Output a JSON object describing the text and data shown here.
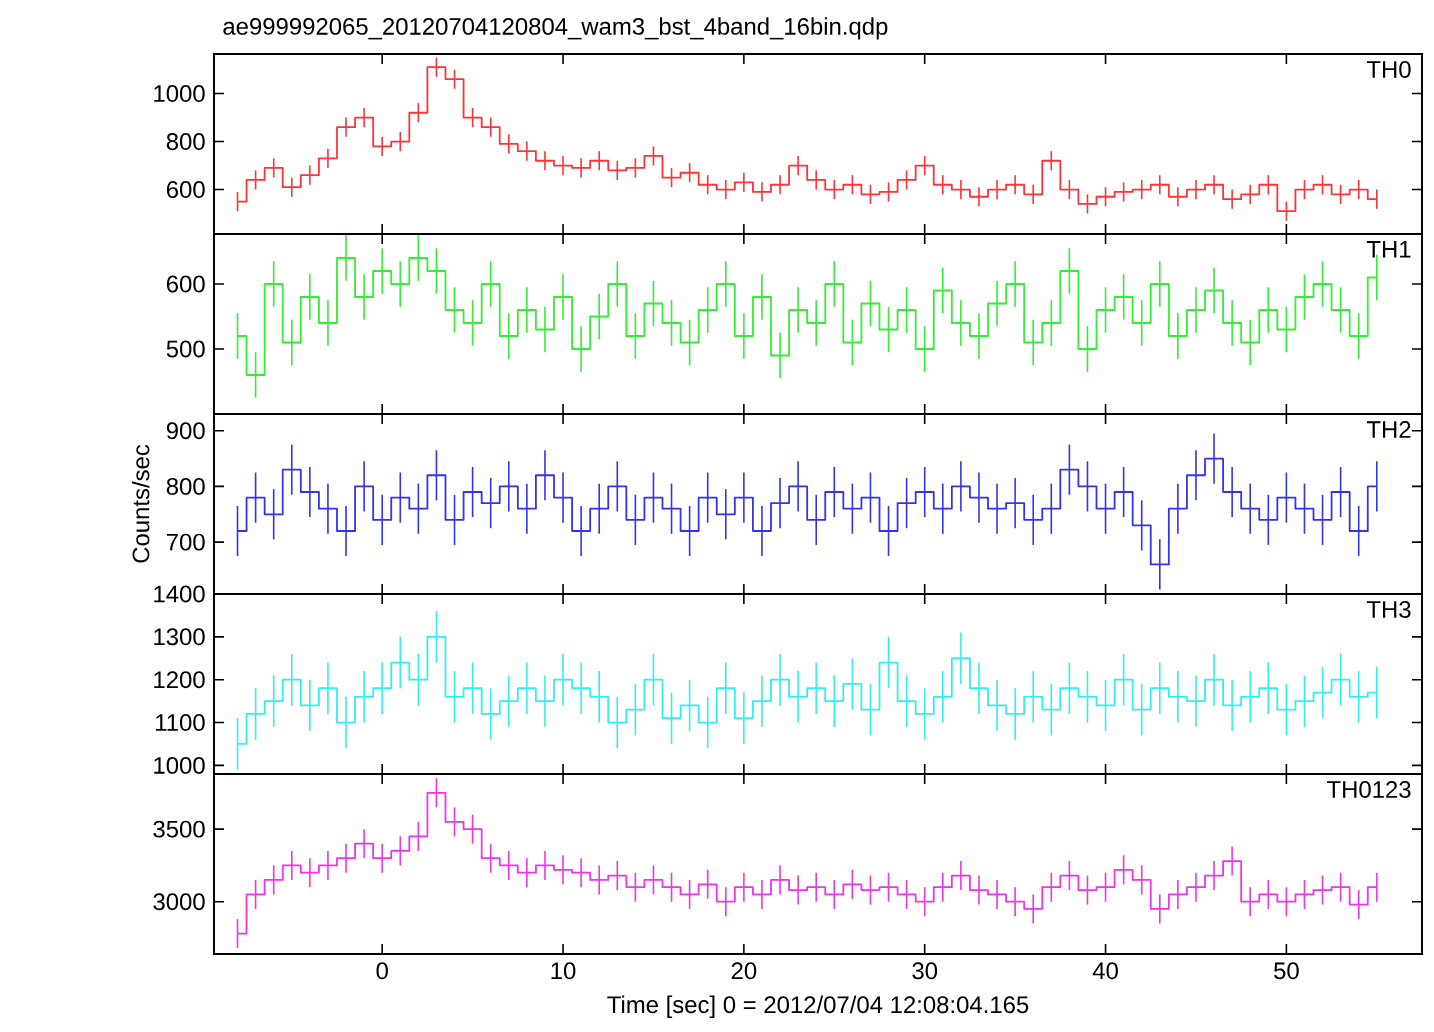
{
  "chart_data": [
    {
      "type": "step",
      "title": "ae999992065_20120704120804_wam3_bst_4band_16bin.qdp",
      "tick_labels": "y",
      "xlim": [
        -9.3,
        57.5
      ],
      "xticks": [
        0,
        10,
        20,
        30,
        40,
        50
      ],
      "ylim": [
        415,
        1165
      ],
      "yticks": [
        600,
        800,
        1000
      ],
      "x": [
        -8,
        -7,
        -6,
        -5,
        -4,
        -3,
        -2,
        -1,
        0,
        1,
        2,
        3,
        4,
        5,
        6,
        7,
        8,
        9,
        10,
        11,
        12,
        13,
        14,
        15,
        16,
        17,
        18,
        19,
        20,
        21,
        22,
        23,
        24,
        25,
        26,
        27,
        28,
        29,
        30,
        31,
        32,
        33,
        34,
        35,
        36,
        37,
        38,
        39,
        40,
        41,
        42,
        43,
        44,
        45,
        46,
        47,
        48,
        49,
        50,
        51,
        52,
        53,
        54,
        55
      ],
      "series": [
        {
          "name": "TH0",
          "color": "#ff3333",
          "values": [
            550,
            640,
            690,
            610,
            660,
            730,
            860,
            900,
            780,
            800,
            920,
            1110,
            1060,
            900,
            860,
            790,
            760,
            720,
            700,
            690,
            720,
            680,
            690,
            740,
            650,
            670,
            620,
            600,
            630,
            590,
            620,
            700,
            640,
            600,
            620,
            580,
            590,
            640,
            700,
            620,
            600,
            570,
            600,
            620,
            580,
            720,
            600,
            540,
            570,
            590,
            600,
            620,
            570,
            600,
            620,
            560,
            580,
            620,
            510,
            600,
            620,
            580,
            600,
            560
          ],
          "errors": [
            40,
            40,
            40,
            40,
            40,
            40,
            40,
            40,
            40,
            40,
            40,
            40,
            40,
            40,
            40,
            40,
            40,
            40,
            40,
            40,
            40,
            40,
            40,
            40,
            40,
            40,
            40,
            40,
            40,
            40,
            40,
            40,
            40,
            40,
            40,
            40,
            40,
            40,
            40,
            40,
            40,
            40,
            40,
            40,
            40,
            40,
            40,
            40,
            40,
            40,
            40,
            40,
            40,
            40,
            40,
            40,
            40,
            40,
            40,
            40,
            40,
            40,
            40,
            40
          ]
        }
      ]
    },
    {
      "type": "step",
      "tick_labels": "y",
      "xlim": [
        -9.3,
        57.5
      ],
      "xticks": [
        0,
        10,
        20,
        30,
        40,
        50
      ],
      "ylim": [
        400,
        677
      ],
      "yticks": [
        500,
        600
      ],
      "x": [
        -8,
        -7,
        -6,
        -5,
        -4,
        -3,
        -2,
        -1,
        0,
        1,
        2,
        3,
        4,
        5,
        6,
        7,
        8,
        9,
        10,
        11,
        12,
        13,
        14,
        15,
        16,
        17,
        18,
        19,
        20,
        21,
        22,
        23,
        24,
        25,
        26,
        27,
        28,
        29,
        30,
        31,
        32,
        33,
        34,
        35,
        36,
        37,
        38,
        39,
        40,
        41,
        42,
        43,
        44,
        45,
        46,
        47,
        48,
        49,
        50,
        51,
        52,
        53,
        54,
        55
      ],
      "series": [
        {
          "name": "TH1",
          "color": "#33ee33",
          "values": [
            520,
            460,
            600,
            510,
            580,
            540,
            640,
            580,
            620,
            600,
            640,
            620,
            560,
            540,
            600,
            520,
            560,
            530,
            580,
            500,
            550,
            600,
            520,
            570,
            540,
            510,
            560,
            600,
            520,
            580,
            490,
            560,
            540,
            600,
            510,
            570,
            530,
            560,
            500,
            590,
            540,
            520,
            570,
            600,
            510,
            540,
            620,
            500,
            560,
            580,
            540,
            600,
            520,
            560,
            590,
            540,
            510,
            560,
            530,
            580,
            600,
            560,
            520,
            610
          ],
          "errors": [
            35,
            35,
            35,
            35,
            35,
            35,
            35,
            35,
            35,
            35,
            35,
            35,
            35,
            35,
            35,
            35,
            35,
            35,
            35,
            35,
            35,
            35,
            35,
            35,
            35,
            35,
            35,
            35,
            35,
            35,
            35,
            35,
            35,
            35,
            35,
            35,
            35,
            35,
            35,
            35,
            35,
            35,
            35,
            35,
            35,
            35,
            35,
            35,
            35,
            35,
            35,
            35,
            35,
            35,
            35,
            35,
            35,
            35,
            35,
            35,
            35,
            35,
            35,
            35
          ]
        }
      ]
    },
    {
      "type": "step",
      "tick_labels": "y",
      "ylabel": "Counts/sec",
      "xlim": [
        -9.3,
        57.5
      ],
      "xticks": [
        0,
        10,
        20,
        30,
        40,
        50
      ],
      "ylim": [
        607,
        930
      ],
      "yticks": [
        700,
        800,
        900
      ],
      "x": [
        -8,
        -7,
        -6,
        -5,
        -4,
        -3,
        -2,
        -1,
        0,
        1,
        2,
        3,
        4,
        5,
        6,
        7,
        8,
        9,
        10,
        11,
        12,
        13,
        14,
        15,
        16,
        17,
        18,
        19,
        20,
        21,
        22,
        23,
        24,
        25,
        26,
        27,
        28,
        29,
        30,
        31,
        32,
        33,
        34,
        35,
        36,
        37,
        38,
        39,
        40,
        41,
        42,
        43,
        44,
        45,
        46,
        47,
        48,
        49,
        50,
        51,
        52,
        53,
        54,
        55
      ],
      "series": [
        {
          "name": "TH2",
          "color": "#3333ee",
          "values": [
            720,
            780,
            750,
            830,
            790,
            760,
            720,
            800,
            740,
            780,
            760,
            820,
            740,
            790,
            770,
            800,
            760,
            820,
            780,
            720,
            760,
            800,
            740,
            780,
            760,
            720,
            780,
            750,
            780,
            720,
            770,
            800,
            740,
            790,
            760,
            780,
            720,
            770,
            790,
            760,
            800,
            780,
            760,
            770,
            740,
            760,
            830,
            800,
            760,
            790,
            730,
            660,
            760,
            820,
            850,
            790,
            760,
            740,
            780,
            760,
            740,
            790,
            720,
            800
          ],
          "errors": [
            45,
            45,
            45,
            45,
            45,
            45,
            45,
            45,
            45,
            45,
            45,
            45,
            45,
            45,
            45,
            45,
            45,
            45,
            45,
            45,
            45,
            45,
            45,
            45,
            45,
            45,
            45,
            45,
            45,
            45,
            45,
            45,
            45,
            45,
            45,
            45,
            45,
            45,
            45,
            45,
            45,
            45,
            45,
            45,
            45,
            45,
            45,
            45,
            45,
            45,
            45,
            45,
            45,
            45,
            45,
            45,
            45,
            45,
            45,
            45,
            45,
            45,
            45,
            45
          ]
        }
      ]
    },
    {
      "type": "step",
      "tick_labels": "y",
      "xlim": [
        -9.3,
        57.5
      ],
      "xticks": [
        0,
        10,
        20,
        30,
        40,
        50
      ],
      "ylim": [
        980,
        1400
      ],
      "yticks": [
        1000,
        1100,
        1200,
        1300,
        1400
      ],
      "x": [
        -8,
        -7,
        -6,
        -5,
        -4,
        -3,
        -2,
        -1,
        0,
        1,
        2,
        3,
        4,
        5,
        6,
        7,
        8,
        9,
        10,
        11,
        12,
        13,
        14,
        15,
        16,
        17,
        18,
        19,
        20,
        21,
        22,
        23,
        24,
        25,
        26,
        27,
        28,
        29,
        30,
        31,
        32,
        33,
        34,
        35,
        36,
        37,
        38,
        39,
        40,
        41,
        42,
        43,
        44,
        45,
        46,
        47,
        48,
        49,
        50,
        51,
        52,
        53,
        54,
        55
      ],
      "series": [
        {
          "name": "TH3",
          "color": "#33eeee",
          "values": [
            1050,
            1120,
            1150,
            1200,
            1140,
            1180,
            1100,
            1160,
            1180,
            1240,
            1200,
            1300,
            1160,
            1180,
            1120,
            1150,
            1180,
            1150,
            1200,
            1180,
            1160,
            1100,
            1130,
            1200,
            1110,
            1140,
            1100,
            1180,
            1110,
            1150,
            1200,
            1160,
            1180,
            1150,
            1190,
            1130,
            1240,
            1150,
            1120,
            1160,
            1250,
            1180,
            1140,
            1120,
            1160,
            1130,
            1180,
            1160,
            1140,
            1200,
            1130,
            1180,
            1160,
            1150,
            1200,
            1140,
            1160,
            1180,
            1130,
            1150,
            1170,
            1200,
            1160,
            1170
          ],
          "errors": [
            60,
            60,
            60,
            60,
            60,
            60,
            60,
            60,
            60,
            60,
            60,
            60,
            60,
            60,
            60,
            60,
            60,
            60,
            60,
            60,
            60,
            60,
            60,
            60,
            60,
            60,
            60,
            60,
            60,
            60,
            60,
            60,
            60,
            60,
            60,
            60,
            60,
            60,
            60,
            60,
            60,
            60,
            60,
            60,
            60,
            60,
            60,
            60,
            60,
            60,
            60,
            60,
            60,
            60,
            60,
            60,
            60,
            60,
            60,
            60,
            60,
            60,
            60,
            60
          ]
        }
      ]
    },
    {
      "type": "step",
      "xlabel": "Time [sec] 0 = 2012/07/04 12:08:04.165",
      "xlim": [
        -9.3,
        57.5
      ],
      "xticks": [
        0,
        10,
        20,
        30,
        40,
        50
      ],
      "ylim": [
        2640,
        3880
      ],
      "yticks": [
        3000,
        3500
      ],
      "x": [
        -8,
        -7,
        -6,
        -5,
        -4,
        -3,
        -2,
        -1,
        0,
        1,
        2,
        3,
        4,
        5,
        6,
        7,
        8,
        9,
        10,
        11,
        12,
        13,
        14,
        15,
        16,
        17,
        18,
        19,
        20,
        21,
        22,
        23,
        24,
        25,
        26,
        27,
        28,
        29,
        30,
        31,
        32,
        33,
        34,
        35,
        36,
        37,
        38,
        39,
        40,
        41,
        42,
        43,
        44,
        45,
        46,
        47,
        48,
        49,
        50,
        51,
        52,
        53,
        54,
        55
      ],
      "series": [
        {
          "name": "TH0123",
          "color": "#ee33ee",
          "values": [
            2780,
            3050,
            3150,
            3250,
            3200,
            3250,
            3300,
            3400,
            3300,
            3350,
            3450,
            3750,
            3550,
            3500,
            3300,
            3250,
            3200,
            3250,
            3220,
            3200,
            3150,
            3180,
            3100,
            3150,
            3100,
            3050,
            3120,
            3000,
            3100,
            3050,
            3150,
            3080,
            3100,
            3050,
            3120,
            3080,
            3100,
            3050,
            3000,
            3100,
            3180,
            3080,
            3050,
            3000,
            2950,
            3100,
            3180,
            3080,
            3100,
            3220,
            3150,
            2950,
            3050,
            3100,
            3180,
            3280,
            3000,
            3050,
            3000,
            3050,
            3080,
            3100,
            2980,
            3100
          ],
          "errors": [
            100,
            100,
            100,
            100,
            100,
            100,
            100,
            100,
            100,
            100,
            100,
            100,
            100,
            100,
            100,
            100,
            100,
            100,
            100,
            100,
            100,
            100,
            100,
            100,
            100,
            100,
            100,
            100,
            100,
            100,
            100,
            100,
            100,
            100,
            100,
            100,
            100,
            100,
            100,
            100,
            100,
            100,
            100,
            100,
            100,
            100,
            100,
            100,
            100,
            100,
            100,
            100,
            100,
            100,
            100,
            100,
            100,
            100,
            100,
            100,
            100,
            100,
            100,
            100
          ]
        }
      ]
    }
  ]
}
